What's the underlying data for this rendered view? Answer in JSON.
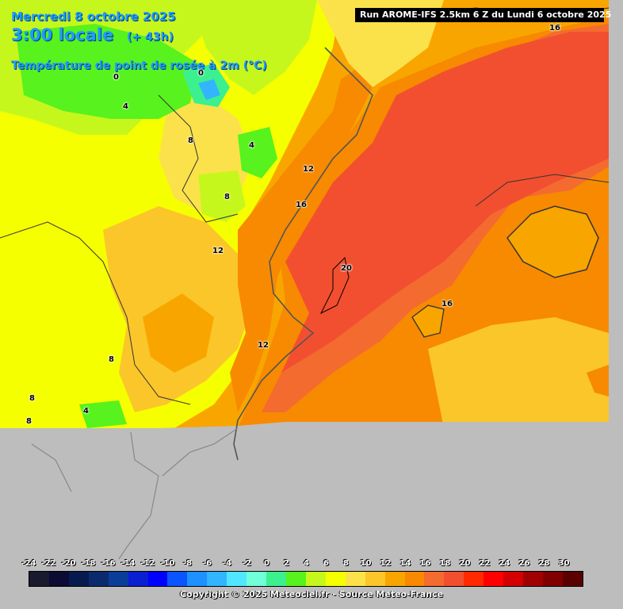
{
  "header": {
    "date": "Mercredi 8 octobre 2025",
    "time": "3:00 locale",
    "lead": "(+ 43h)",
    "parameter": "Température de point de rosée à 2m (°C)",
    "run": "Run AROME-IFS 2.5km 6 Z du Lundi 6 octobre 2025"
  },
  "contour_labels": [
    "16",
    "0",
    "0",
    "4",
    "8",
    "4",
    "12",
    "8",
    "16",
    "12",
    "20",
    "16",
    "12",
    "8",
    "8",
    "4",
    "8"
  ],
  "legend": {
    "ticks": [
      "-24",
      "-22",
      "-20",
      "-18",
      "-16",
      "-14",
      "-12",
      "-10",
      "-8",
      "-6",
      "-4",
      "-2",
      "0",
      "2",
      "4",
      "6",
      "8",
      "10",
      "12",
      "14",
      "16",
      "18",
      "20",
      "22",
      "24",
      "26",
      "28",
      "30"
    ],
    "colors": [
      "#1a1a2e",
      "#0b0b33",
      "#061a4d",
      "#0b2a6b",
      "#0a3c99",
      "#0a1ed2",
      "#0000ff",
      "#0a55ff",
      "#1e90ff",
      "#32b4ff",
      "#50e6ff",
      "#70ffd8",
      "#3cf090",
      "#58f21e",
      "#c6f71c",
      "#f5ff00",
      "#fbe24a",
      "#fbc62a",
      "#f9a500",
      "#f78a00",
      "#f46b30",
      "#f24f30",
      "#ff2a00",
      "#ff0000",
      "#d20000",
      "#a00000",
      "#800000",
      "#5a0000"
    ]
  },
  "copyright": "Copyright © 2025 Meteociel.fr - Source Meteo-France"
}
